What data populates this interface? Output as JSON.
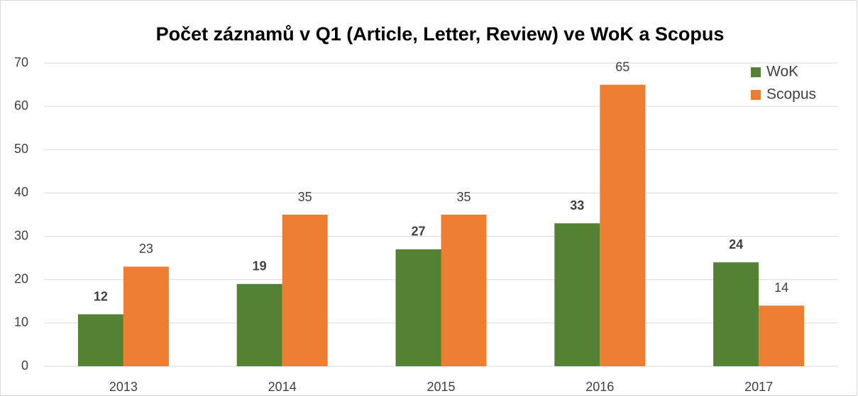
{
  "chart_data": {
    "type": "bar",
    "title": "Počet záznamů v Q1 (Article, Letter, Review) ve WoK a Scopus",
    "categories": [
      "2013",
      "2014",
      "2015",
      "2016",
      "2017"
    ],
    "series": [
      {
        "name": "WoK",
        "color": "#548235",
        "values": [
          12,
          19,
          27,
          33,
          24
        ]
      },
      {
        "name": "Scopus",
        "color": "#ed7d31",
        "values": [
          23,
          35,
          35,
          65,
          14
        ]
      }
    ],
    "ylim": [
      0,
      70
    ],
    "yticks": [
      0,
      10,
      20,
      30,
      40,
      50,
      60,
      70
    ],
    "grid": true,
    "legend": "top-right"
  }
}
